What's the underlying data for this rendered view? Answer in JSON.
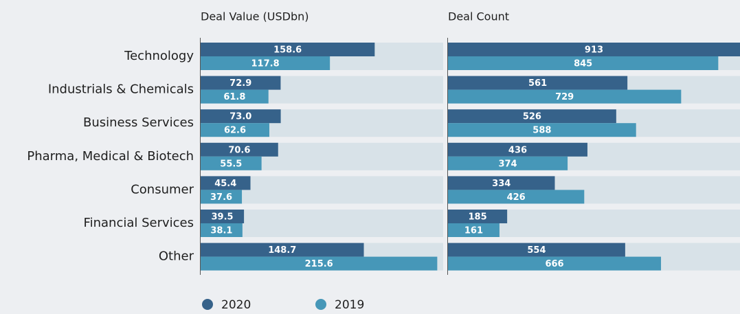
{
  "chart_data": [
    {
      "type": "bar",
      "orientation": "horizontal",
      "title": "Deal Value (USDbn)",
      "categories": [
        "Technology",
        "Industrials & Chemicals",
        "Business Services",
        "Pharma, Medical & Biotech",
        "Consumer",
        "Financial Services",
        "Other"
      ],
      "xlim": [
        0,
        221
      ],
      "series": [
        {
          "name": "2020",
          "color": "#36628a",
          "values": [
            158.6,
            72.9,
            73.0,
            70.6,
            45.4,
            39.5,
            148.7
          ],
          "value_labels": [
            "158.6",
            "72.9",
            "73.0",
            "70.6",
            "45.4",
            "39.5",
            "148.7"
          ]
        },
        {
          "name": "2019",
          "color": "#4697b8",
          "values": [
            117.8,
            61.8,
            62.6,
            55.5,
            37.6,
            38.1,
            215.6
          ],
          "value_labels": [
            "117.8",
            "61.8",
            "62.6",
            "55.5",
            "37.6",
            "38.1",
            "215.6"
          ]
        }
      ]
    },
    {
      "type": "bar",
      "orientation": "horizontal",
      "title": "Deal Count",
      "xlim": [
        0,
        913
      ],
      "series": [
        {
          "name": "2020",
          "color": "#36628a",
          "values": [
            913,
            561,
            526,
            436,
            334,
            185,
            554
          ]
        },
        {
          "name": "2019",
          "color": "#4697b8",
          "values": [
            845,
            729,
            588,
            374,
            426,
            161,
            666
          ]
        }
      ]
    }
  ]
}
